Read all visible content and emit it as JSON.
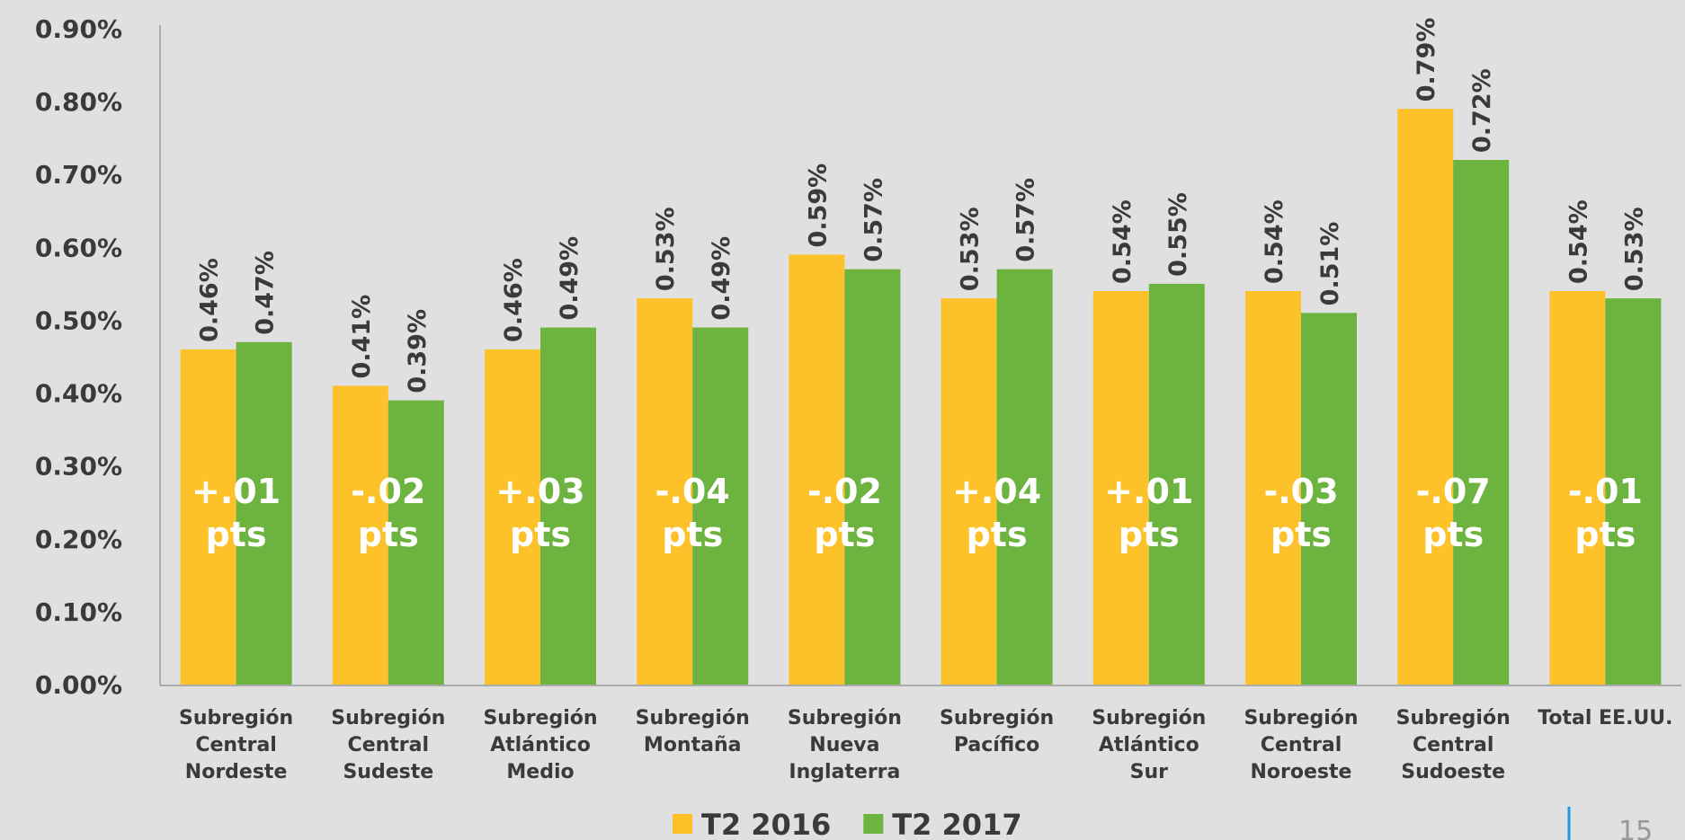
{
  "chart_data": {
    "type": "bar",
    "categories": [
      [
        "Subregión",
        "Central",
        "Nordeste"
      ],
      [
        "Subregión",
        "Central",
        "Sudeste"
      ],
      [
        "Subregión",
        "Atlántico",
        "Medio"
      ],
      [
        "Subregión",
        "Montaña"
      ],
      [
        "Subregión",
        "Nueva",
        "Inglaterra"
      ],
      [
        "Subregión",
        "Pacífico"
      ],
      [
        "Subregión",
        "Atlántico",
        "Sur"
      ],
      [
        "Subregión",
        "Central",
        "Noroeste"
      ],
      [
        "Subregión",
        "Central",
        "Sudoeste"
      ],
      [
        "Total EE.UU."
      ]
    ],
    "series": [
      {
        "name": "T2 2016",
        "color": "#fdc12a",
        "values": [
          0.46,
          0.41,
          0.46,
          0.53,
          0.59,
          0.53,
          0.54,
          0.54,
          0.79,
          0.54
        ],
        "value_labels": [
          "0.46%",
          "0.41%",
          "0.46%",
          "0.53%",
          "0.59%",
          "0.53%",
          "0.54%",
          "0.54%",
          "0.79%",
          "0.54%"
        ]
      },
      {
        "name": "T2 2017",
        "color": "#6db33f",
        "values": [
          0.47,
          0.39,
          0.49,
          0.49,
          0.57,
          0.57,
          0.55,
          0.51,
          0.72,
          0.53
        ],
        "value_labels": [
          "0.47%",
          "0.39%",
          "0.49%",
          "0.49%",
          "0.57%",
          "0.57%",
          "0.55%",
          "0.51%",
          "0.72%",
          "0.53%"
        ]
      }
    ],
    "annotations": [
      [
        "+.01",
        "pts"
      ],
      [
        "-.02",
        "pts"
      ],
      [
        "+.03",
        "pts"
      ],
      [
        "-.04",
        "pts"
      ],
      [
        "-.02",
        "pts"
      ],
      [
        "+.04",
        "pts"
      ],
      [
        "+.01",
        "pts"
      ],
      [
        "-.03",
        "pts"
      ],
      [
        "-.07",
        "pts"
      ],
      [
        "-.01",
        "pts"
      ]
    ],
    "ylim": [
      0,
      0.9
    ],
    "yticks": [
      {
        "value": 0,
        "label": "0.00%"
      },
      {
        "value": 0.1,
        "label": "0.10%"
      },
      {
        "value": 0.2,
        "label": "0.20%"
      },
      {
        "value": 0.3,
        "label": "0.30%"
      },
      {
        "value": 0.4,
        "label": "0.40%"
      },
      {
        "value": 0.5,
        "label": "0.50%"
      },
      {
        "value": 0.6,
        "label": "0.60%"
      },
      {
        "value": 0.7,
        "label": "0.70%"
      },
      {
        "value": 0.8,
        "label": "0.80%"
      },
      {
        "value": 0.9,
        "label": "0.90%"
      }
    ],
    "grid": false,
    "legend": "bottom"
  },
  "page_number": "15"
}
